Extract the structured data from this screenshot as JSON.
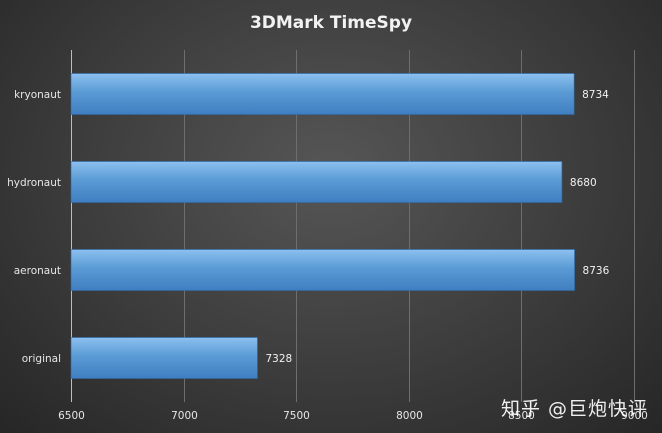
{
  "watermark": "知乎 @巨炮快评",
  "colors": {
    "bar_top": "#8cc0ef",
    "bar_mid": "#5b9bd5",
    "bar_bottom": "#3f7ec0",
    "bar_stroke": "#2f6aa8"
  },
  "chart_data": {
    "type": "bar",
    "orientation": "horizontal",
    "title": "3DMark TimeSpy",
    "categories": [
      "kryonaut",
      "hydronaut",
      "aeronaut",
      "original"
    ],
    "values": [
      8734,
      8680,
      8736,
      7328
    ],
    "xlim": [
      6500,
      9000
    ],
    "xticks": [
      6500,
      7000,
      7500,
      8000,
      8500,
      9000
    ],
    "grid": true,
    "legend": "none"
  }
}
